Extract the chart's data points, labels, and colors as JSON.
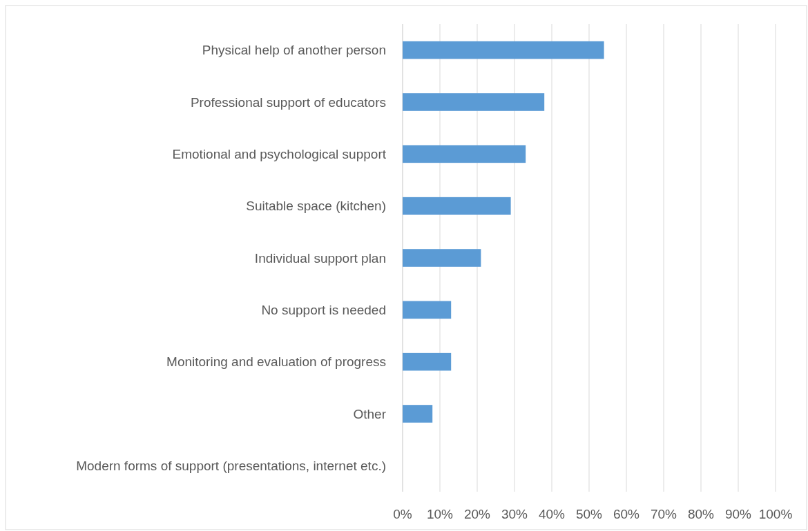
{
  "chart_data": {
    "type": "bar",
    "orientation": "horizontal",
    "categories": [
      "Physical help of another person",
      "Professional support of educators",
      "Emotional and psychological support",
      "Suitable space (kitchen)",
      "Individual support plan",
      "No support is needed",
      "Monitoring and evaluation of progress",
      "Other",
      "Modern forms of support (presentations, internet etc.)"
    ],
    "values": [
      54,
      38,
      33,
      29,
      21,
      13,
      13,
      8,
      0
    ],
    "color": "#5b9bd5",
    "xlim": [
      0,
      100
    ],
    "xticks": [
      {
        "value": 0,
        "label": "0%"
      },
      {
        "value": 10,
        "label": "10%"
      },
      {
        "value": 20,
        "label": "20%"
      },
      {
        "value": 30,
        "label": "30%"
      },
      {
        "value": 40,
        "label": "40%"
      },
      {
        "value": 50,
        "label": "50%"
      },
      {
        "value": 60,
        "label": "60%"
      },
      {
        "value": 70,
        "label": "70%"
      },
      {
        "value": 80,
        "label": "80%"
      },
      {
        "value": 90,
        "label": "90%"
      },
      {
        "value": 100,
        "label": "100%"
      }
    ],
    "grid": "x"
  }
}
